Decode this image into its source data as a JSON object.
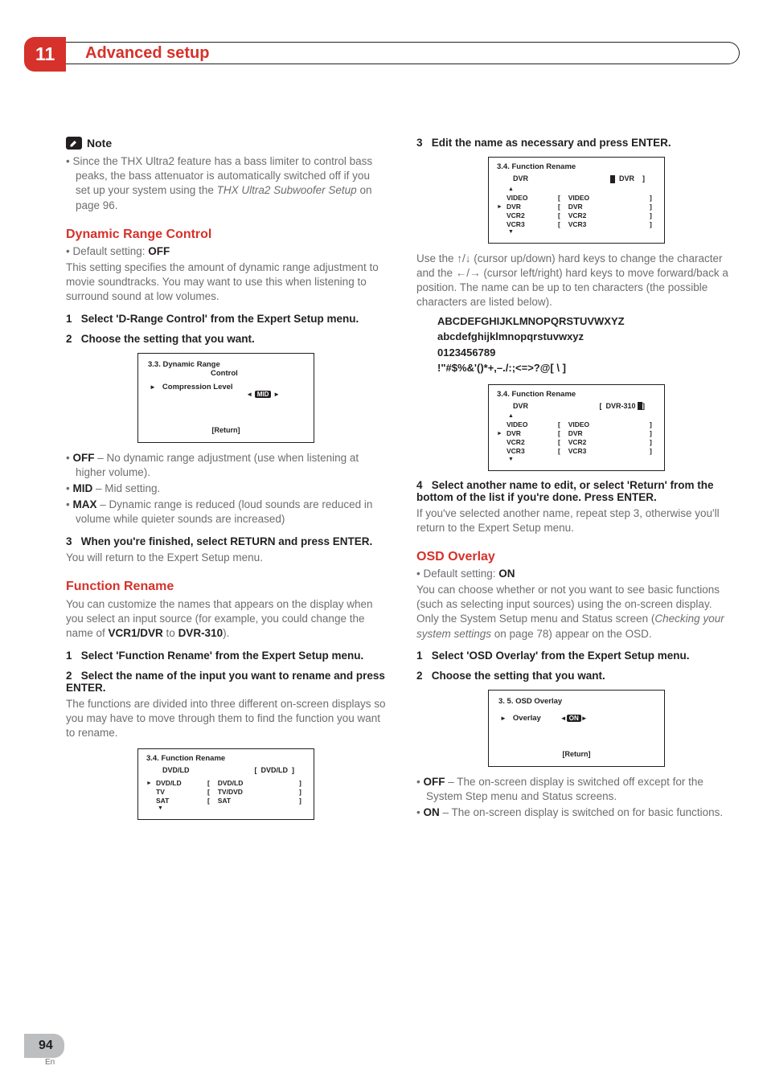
{
  "page": {
    "chapter_number": "11",
    "chapter_title": "Advanced setup",
    "footer_page": "94",
    "footer_lang": "En"
  },
  "col1": {
    "note_label": "Note",
    "note_bullet": "Since the THX Ultra2 feature has a bass limiter to control bass peaks, the bass attenuator is automatically switched off if you set up your system using the ",
    "note_italic": "THX Ultra2 Subwoofer Setup",
    "note_tail": " on page 96.",
    "drc_h": "Dynamic Range Control",
    "drc_default_pre": "Default setting: ",
    "drc_default_val": "OFF",
    "drc_intro": "This setting specifies the amount of dynamic range adjustment to movie soundtracks. You may want to use this when listening to surround sound at low volumes.",
    "drc_s1_n": "1",
    "drc_s1": "Select 'D-Range Control' from the Expert Setup menu.",
    "drc_s2_n": "2",
    "drc_s2": "Choose the setting that you want.",
    "drc_box": {
      "title": "3.3. Dynamic  Range",
      "sub": "Control",
      "row_label": "Compression Level",
      "pill": "MID",
      "ret": "[Return]"
    },
    "drc_b1_k": "OFF",
    "drc_b1_v": " – No dynamic range adjustment (use when listening at higher volume).",
    "drc_b2_k": "MID",
    "drc_b2_v": " – Mid setting.",
    "drc_b3_k": "MAX",
    "drc_b3_v": " – Dynamic range is reduced (loud sounds are reduced in volume while quieter sounds are increased)",
    "drc_s3_n": "3",
    "drc_s3": "When you're finished, select RETURN and press ENTER.",
    "drc_after": "You will return to the Expert Setup menu.",
    "fr_h": "Function Rename",
    "fr_intro_a": "You can customize the names that appears on the display when you select an input source (for example, you could change the name of ",
    "fr_intro_b": "VCR1/DVR",
    "fr_intro_c": " to ",
    "fr_intro_d": "DVR-310",
    "fr_intro_e": ").",
    "fr_s1_n": "1",
    "fr_s1": "Select 'Function Rename' from the Expert Setup menu.",
    "fr_s2_n": "2",
    "fr_s2": "Select the name of the input you want to rename and press ENTER.",
    "fr_after2": "The functions are divided into three different on-screen displays so you may have to move through them to find the function you want to rename.",
    "fr_box1": {
      "title": "3.4. Function  Rename",
      "top_l": "DVD/LD",
      "top_r": "DVD/LD",
      "rows": [
        {
          "l": "DVD/LD",
          "r": "DVD/LD",
          "sel": true
        },
        {
          "l": "TV",
          "r": "TV/DVD",
          "sel": false
        },
        {
          "l": "SAT",
          "r": "SAT",
          "sel": false
        }
      ]
    }
  },
  "col2": {
    "s3_n": "3",
    "s3": "Edit the name as necessary and press ENTER.",
    "box2": {
      "title": "3.4. Function  Rename",
      "top_l": "DVR",
      "top_r": "DVR",
      "rows": [
        {
          "l": "VIDEO",
          "r": "VIDEO",
          "sel": false
        },
        {
          "l": "DVR",
          "r": "DVR",
          "sel": true
        },
        {
          "l": "VCR2",
          "r": "VCR2",
          "sel": false
        },
        {
          "l": "VCR3",
          "r": "VCR3",
          "sel": false
        }
      ]
    },
    "use_a": "Use the ",
    "use_b": " (cursor up/down) hard keys to change the character and the ",
    "use_c": " (cursor left/right) hard keys to move forward/back a position. The name can be up to ten characters (the possible characters are listed below).",
    "cs1": "ABCDEFGHIJKLMNOPQRSTUVWXYZ",
    "cs2": "abcdefghijklmnopqrstuvwxyz",
    "cs3": "0123456789",
    "cs4": "!\"#$%&'()*+,–./:;<=>?@[ \\ ]",
    "box3": {
      "title": "3.4. Function  Rename",
      "top_l": "DVR",
      "top_r": "DVR-310",
      "rows": [
        {
          "l": "VIDEO",
          "r": "VIDEO",
          "sel": false
        },
        {
          "l": "DVR",
          "r": "DVR",
          "sel": true
        },
        {
          "l": "VCR2",
          "r": "VCR2",
          "sel": false
        },
        {
          "l": "VCR3",
          "r": "VCR3",
          "sel": false
        }
      ]
    },
    "s4_n": "4",
    "s4": "Select another name to edit, or select 'Return' from the bottom of the list if you're done. Press ENTER.",
    "s4_after": "If you've selected another name, repeat step 3, otherwise you'll return to the Expert Setup menu.",
    "osd_h": "OSD Overlay",
    "osd_default_pre": "Default setting: ",
    "osd_default_val": "ON",
    "osd_intro_a": "You can choose whether or not you want to see basic functions (such as selecting input sources) using the on-screen display. Only the System Setup menu and Status screen (",
    "osd_intro_i": "Checking your system settings",
    "osd_intro_b": " on page 78) appear on the OSD.",
    "osd_s1_n": "1",
    "osd_s1": "Select 'OSD Overlay' from the Expert Setup menu.",
    "osd_s2_n": "2",
    "osd_s2": "Choose the setting that you want.",
    "osd_box": {
      "title": "3. 5. OSD Overlay",
      "row_label": "Overlay",
      "pill": "ON",
      "ret": "[Return]"
    },
    "osd_b1_k": "OFF",
    "osd_b1_v": " – The on-screen display is switched off except for the System Step menu and Status screens.",
    "osd_b2_k": "ON",
    "osd_b2_v": " – The on-screen display is switched on for basic functions."
  }
}
